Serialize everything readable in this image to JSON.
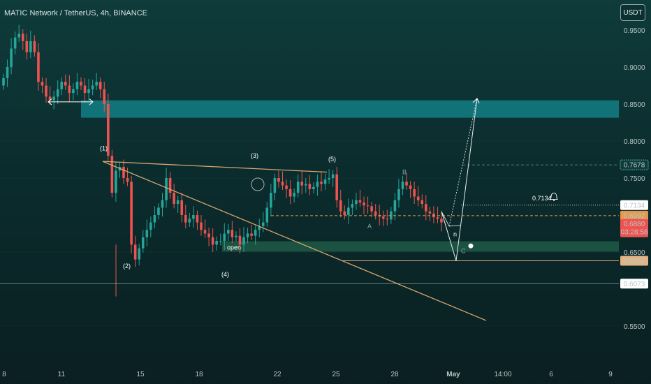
{
  "header": {
    "symbol": "MATIC Network / TetherUS, 4h, BINANCE",
    "currency": "USDT"
  },
  "colors": {
    "up": "#26a69a",
    "down": "#ef5350",
    "resistance_zone": "#137f84",
    "support_zone": "#1f5a45",
    "trendline": "#d9a66f",
    "target": "#ffffff"
  },
  "chart_data": {
    "type": "candlestick",
    "ylim": [
      0.54,
      0.975
    ],
    "y_ticks": [
      "0.9500",
      "0.9000",
      "0.8500",
      "0.8000",
      "0.7500",
      "0.6500",
      "0.5500"
    ],
    "x_ticks": [
      "8",
      "11",
      "15",
      "18",
      "22",
      "25",
      "28",
      "May",
      "14:00",
      "6",
      "9"
    ],
    "ohlc_close_path": [
      0.885,
      0.9,
      0.925,
      0.94,
      0.945,
      0.935,
      0.92,
      0.935,
      0.92,
      0.88,
      0.875,
      0.86,
      0.855,
      0.86,
      0.87,
      0.88,
      0.875,
      0.865,
      0.87,
      0.88,
      0.875,
      0.865,
      0.87,
      0.875,
      0.88,
      0.87,
      0.85,
      0.78,
      0.73,
      0.76,
      0.765,
      0.75,
      0.745,
      0.66,
      0.64,
      0.655,
      0.67,
      0.68,
      0.69,
      0.7,
      0.71,
      0.72,
      0.75,
      0.73,
      0.715,
      0.72,
      0.7,
      0.69,
      0.695,
      0.7,
      0.69,
      0.68,
      0.675,
      0.67,
      0.66,
      0.665,
      0.665,
      0.675,
      0.68,
      0.67,
      0.672,
      0.66,
      0.67,
      0.675,
      0.672,
      0.68,
      0.685,
      0.69,
      0.71,
      0.73,
      0.75,
      0.745,
      0.74,
      0.735,
      0.725,
      0.73,
      0.745,
      0.74,
      0.742,
      0.735,
      0.738,
      0.745,
      0.742,
      0.748,
      0.75,
      0.755,
      0.72,
      0.705,
      0.7,
      0.71,
      0.715,
      0.72,
      0.717,
      0.713,
      0.712,
      0.705,
      0.7,
      0.698,
      0.695,
      0.694,
      0.705,
      0.72,
      0.735,
      0.745,
      0.74,
      0.735,
      0.725,
      0.72,
      0.715,
      0.705,
      0.702,
      0.697,
      0.695,
      0.69
    ],
    "zones": [
      {
        "name": "resistance-zone",
        "from": 0.8315,
        "to": 0.855
      },
      {
        "name": "support-zone",
        "from": 0.6505,
        "to": 0.6645
      }
    ],
    "levels": [
      {
        "name": "alert-level",
        "value": 0.7134,
        "label": "0.7134"
      },
      {
        "name": "support-line",
        "value": 0.6382
      },
      {
        "name": "support-dashed",
        "value": 0.6992
      },
      {
        "name": "dashed-upper",
        "value": 0.7678
      },
      {
        "name": "base-line",
        "value": 0.6073
      }
    ],
    "wave_labels": [
      "(1)",
      "(2)",
      "(3)",
      "(4)",
      "(5)",
      "A",
      "B",
      "C",
      "n",
      "open"
    ],
    "price_tags": [
      {
        "name": "tag-upper",
        "value": 0.7678,
        "label": "0.7678",
        "style": "dashed"
      },
      {
        "name": "tag-alert",
        "value": 0.7134,
        "label": "0.7134",
        "style": "white"
      },
      {
        "name": "tag-dashed",
        "value": 0.6992,
        "label": "0.6992",
        "style": "orange"
      },
      {
        "name": "tag-last",
        "value": 0.688,
        "label": "0.6880",
        "sublabel": "03:28:58",
        "style": "red"
      },
      {
        "name": "tag-support",
        "value": 0.6382,
        "label": "0.6382",
        "style": "tan"
      },
      {
        "name": "tag-base",
        "value": 0.6073,
        "label": "0.6073",
        "style": "white"
      }
    ],
    "projection": {
      "bottom": 0.6382,
      "top": 0.8575
    }
  }
}
